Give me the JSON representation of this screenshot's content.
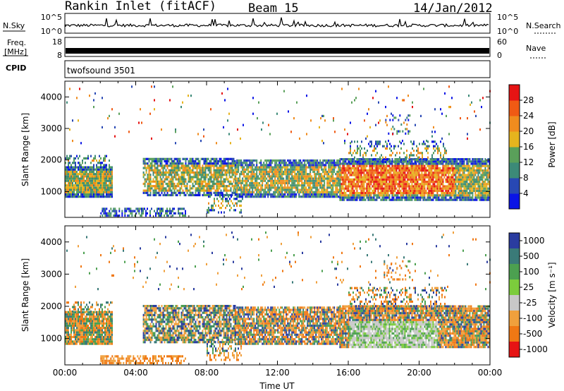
{
  "header": {
    "station": "Rankin Inlet (fitACF)",
    "beam": "Beam 15",
    "date": "14/Jan/2012"
  },
  "strips": {
    "nsky_label": "N.Sky",
    "nsearch_label": "N.Search",
    "nsky_ticks": [
      "10^5",
      "10^0"
    ],
    "nsearch_ticks": [
      "10^5",
      "10^0"
    ],
    "freq_label_1": "Freq.",
    "freq_label_2": "[MHz]",
    "freq_ticks": [
      "18",
      "8"
    ],
    "nave_label": "Nave",
    "nave_ticks": [
      "60",
      "0"
    ],
    "cpid_label": "CPID",
    "cpid_value": "twofsound 3501"
  },
  "colors": {
    "power": [
      "#0a14e6",
      "#2848b4",
      "#3c8a78",
      "#5aa05a",
      "#e6b41e",
      "#f08c1e",
      "#f05a14",
      "#e61414"
    ],
    "velocity": [
      "#2a3ca0",
      "#3a7a78",
      "#4ca050",
      "#7ccc3c",
      "#c8c8c8",
      "#f0a03c",
      "#f07814",
      "#e61414"
    ]
  },
  "chart_data": [
    {
      "type": "heatmap",
      "quantity": "Power",
      "ylabel": "Slant Range [km]",
      "ylim": [
        180,
        4500
      ],
      "xlim": [
        "00:00",
        "24:00"
      ],
      "y_ticks": [
        "1000",
        "2000",
        "3000",
        "4000"
      ],
      "colorbar": {
        "label": "Power [dB]",
        "ticks": [
          "4",
          "8",
          "12",
          "16",
          "20",
          "24",
          "28"
        ],
        "range": [
          0,
          32
        ]
      }
    },
    {
      "type": "heatmap",
      "quantity": "Velocity",
      "ylabel": "Slant Range [km]",
      "xlabel": "Time UT",
      "ylim": [
        180,
        4500
      ],
      "xlim": [
        "00:00",
        "24:00"
      ],
      "x_ticks": [
        "00:00",
        "04:00",
        "08:00",
        "12:00",
        "16:00",
        "20:00",
        "00:00"
      ],
      "y_ticks": [
        "1000",
        "2000",
        "3000",
        "4000"
      ],
      "colorbar": {
        "label": "Velocity [m s⁻¹]",
        "ticks": [
          "1000",
          "500",
          "100",
          "25",
          "-25",
          "-100",
          "-500",
          "-1000"
        ]
      }
    }
  ]
}
